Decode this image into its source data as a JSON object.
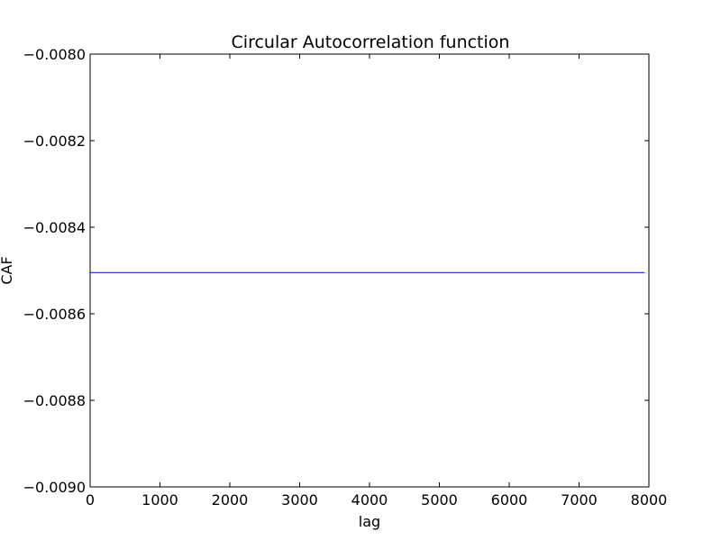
{
  "chart_data": {
    "type": "line",
    "title": "Circular Autocorrelation function",
    "xlabel": "lag",
    "ylabel": "CAF",
    "xlim": [
      0,
      8000
    ],
    "ylim": [
      -0.009,
      -0.008
    ],
    "xticks": [
      0,
      1000,
      2000,
      3000,
      4000,
      5000,
      6000,
      7000,
      8000
    ],
    "xtick_labels": [
      "0",
      "1000",
      "2000",
      "3000",
      "4000",
      "5000",
      "6000",
      "7000",
      "8000"
    ],
    "yticks": [
      -0.008,
      -0.0082,
      -0.0084,
      -0.0086,
      -0.0088,
      -0.009
    ],
    "ytick_labels": [
      "−0.0080",
      "−0.0082",
      "−0.0084",
      "−0.0086",
      "−0.0088",
      "−0.0090"
    ],
    "grid": false,
    "series": [
      {
        "color": "#3b3bd4",
        "x": [
          0,
          7940
        ],
        "y": [
          -0.008505,
          -0.008505
        ]
      }
    ]
  }
}
